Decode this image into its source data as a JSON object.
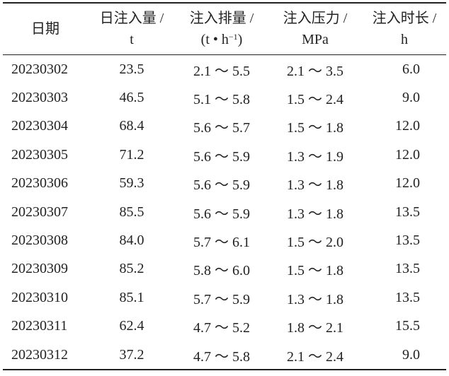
{
  "headers": [
    {
      "line1": "日期"
    },
    {
      "line1": "日注入量 /",
      "line2": "t"
    },
    {
      "line1": "注入排量 /",
      "line2_pre": "(t • h",
      "line2_sup": "−1",
      "line2_post": ")"
    },
    {
      "line1": "注入压力 /",
      "line2": "MPa"
    },
    {
      "line1": "注入时长 /",
      "line2": "h"
    }
  ],
  "rows": [
    {
      "date": "20230302",
      "volume": "23.5",
      "rate": "2.1 〜 5.5",
      "pressure": "2.1 〜 3.5",
      "duration": "6.0"
    },
    {
      "date": "20230303",
      "volume": "46.5",
      "rate": "5.1 〜 5.8",
      "pressure": "1.5 〜 2.4",
      "duration": "9.0"
    },
    {
      "date": "20230304",
      "volume": "68.4",
      "rate": "5.6 〜 5.7",
      "pressure": "1.5 〜 1.8",
      "duration": "12.0"
    },
    {
      "date": "20230305",
      "volume": "71.2",
      "rate": "5.6 〜 5.9",
      "pressure": "1.3 〜 1.9",
      "duration": "12.0"
    },
    {
      "date": "20230306",
      "volume": "59.3",
      "rate": "5.6 〜 5.9",
      "pressure": "1.3 〜 1.8",
      "duration": "12.0"
    },
    {
      "date": "20230307",
      "volume": "85.5",
      "rate": "5.6 〜 5.9",
      "pressure": "1.3 〜 1.8",
      "duration": "13.5"
    },
    {
      "date": "20230308",
      "volume": "84.0",
      "rate": "5.7 〜 6.1",
      "pressure": "1.5 〜 2.0",
      "duration": "13.5"
    },
    {
      "date": "20230309",
      "volume": "85.2",
      "rate": "5.8 〜 6.0",
      "pressure": "1.5 〜 1.8",
      "duration": "13.5"
    },
    {
      "date": "20230310",
      "volume": "85.1",
      "rate": "5.7 〜 5.9",
      "pressure": "1.3 〜 1.8",
      "duration": "13.5"
    },
    {
      "date": "20230311",
      "volume": "62.4",
      "rate": "4.7 〜 5.2",
      "pressure": "1.8 〜 2.1",
      "duration": "15.5"
    },
    {
      "date": "20230312",
      "volume": "37.2",
      "rate": "4.7 〜 5.8",
      "pressure": "2.1 〜 2.4",
      "duration": "9.0"
    }
  ]
}
